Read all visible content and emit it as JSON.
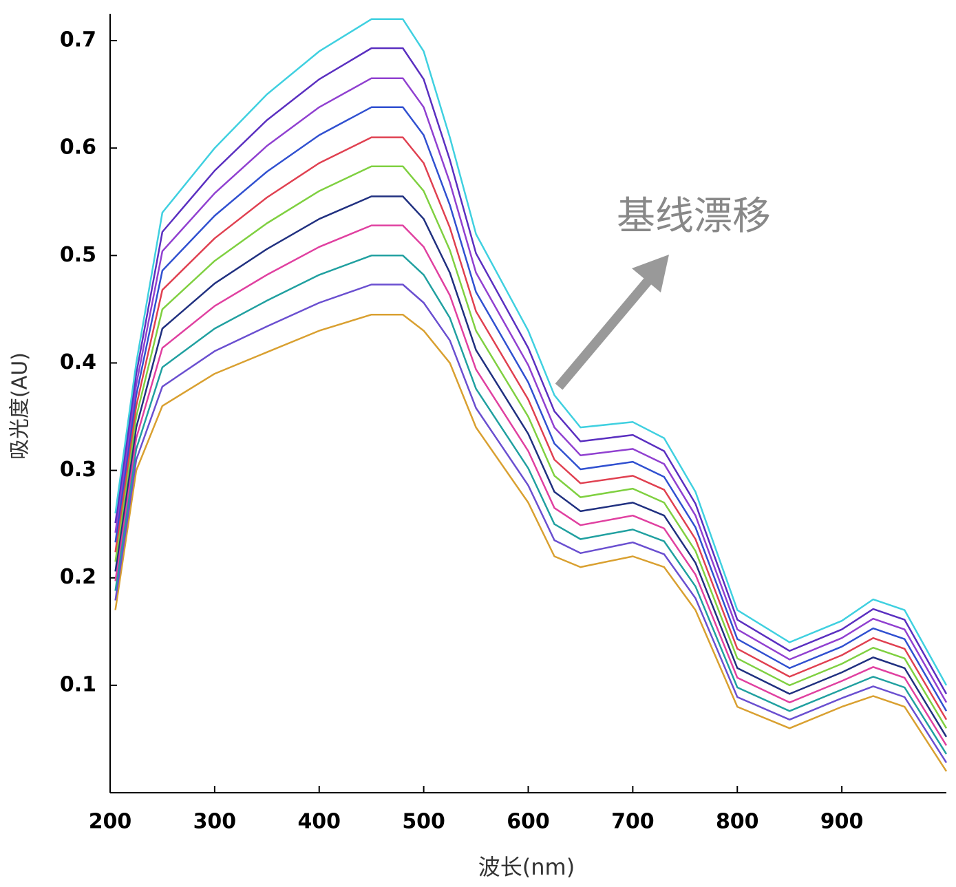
{
  "chart_data": {
    "type": "line",
    "xlabel": "波长(nm)",
    "ylabel": "吸光度(AU)",
    "annotation": "基线漂移",
    "x": [
      205,
      225,
      250,
      300,
      350,
      400,
      450,
      480,
      500,
      525,
      550,
      600,
      625,
      650,
      700,
      730,
      760,
      800,
      850,
      900,
      930,
      960,
      1000
    ],
    "series": [
      {
        "color": "#d9a030",
        "values": [
          0.17,
          0.3,
          0.36,
          0.39,
          0.41,
          0.43,
          0.445,
          0.445,
          0.43,
          0.4,
          0.34,
          0.27,
          0.22,
          0.21,
          0.22,
          0.21,
          0.17,
          0.08,
          0.06,
          0.08,
          0.09,
          0.08,
          0.02
        ]
      },
      {
        "color": "#6a4fd0",
        "values": [
          0.179,
          0.31,
          0.378,
          0.411,
          0.434,
          0.456,
          0.473,
          0.473,
          0.456,
          0.421,
          0.358,
          0.286,
          0.235,
          0.223,
          0.233,
          0.222,
          0.181,
          0.089,
          0.068,
          0.088,
          0.099,
          0.089,
          0.028
        ]
      },
      {
        "color": "#20a0a0",
        "values": [
          0.188,
          0.32,
          0.396,
          0.432,
          0.458,
          0.482,
          0.5,
          0.5,
          0.482,
          0.442,
          0.376,
          0.302,
          0.25,
          0.236,
          0.245,
          0.234,
          0.192,
          0.098,
          0.076,
          0.096,
          0.108,
          0.098,
          0.036
        ]
      },
      {
        "color": "#e040a0",
        "values": [
          0.197,
          0.33,
          0.414,
          0.453,
          0.482,
          0.508,
          0.528,
          0.528,
          0.508,
          0.463,
          0.394,
          0.318,
          0.265,
          0.249,
          0.258,
          0.246,
          0.203,
          0.107,
          0.084,
          0.104,
          0.117,
          0.107,
          0.044
        ]
      },
      {
        "color": "#203080",
        "values": [
          0.206,
          0.34,
          0.432,
          0.474,
          0.506,
          0.534,
          0.555,
          0.555,
          0.534,
          0.484,
          0.412,
          0.334,
          0.28,
          0.262,
          0.27,
          0.258,
          0.214,
          0.116,
          0.092,
          0.112,
          0.126,
          0.116,
          0.052
        ]
      },
      {
        "color": "#7fd040",
        "values": [
          0.215,
          0.35,
          0.45,
          0.495,
          0.53,
          0.56,
          0.583,
          0.583,
          0.56,
          0.505,
          0.43,
          0.35,
          0.295,
          0.275,
          0.283,
          0.27,
          0.225,
          0.125,
          0.1,
          0.12,
          0.135,
          0.125,
          0.06
        ]
      },
      {
        "color": "#e04050",
        "values": [
          0.224,
          0.36,
          0.468,
          0.516,
          0.554,
          0.586,
          0.61,
          0.61,
          0.586,
          0.526,
          0.448,
          0.366,
          0.31,
          0.288,
          0.295,
          0.282,
          0.236,
          0.134,
          0.108,
          0.128,
          0.144,
          0.134,
          0.068
        ]
      },
      {
        "color": "#3050d0",
        "values": [
          0.233,
          0.37,
          0.486,
          0.537,
          0.578,
          0.612,
          0.638,
          0.638,
          0.612,
          0.547,
          0.466,
          0.382,
          0.325,
          0.301,
          0.308,
          0.294,
          0.247,
          0.143,
          0.116,
          0.136,
          0.153,
          0.143,
          0.076
        ]
      },
      {
        "color": "#9040d0",
        "values": [
          0.242,
          0.38,
          0.504,
          0.558,
          0.602,
          0.638,
          0.665,
          0.665,
          0.638,
          0.568,
          0.484,
          0.398,
          0.34,
          0.314,
          0.32,
          0.306,
          0.258,
          0.152,
          0.124,
          0.144,
          0.162,
          0.152,
          0.084
        ]
      },
      {
        "color": "#5a2fc0",
        "values": [
          0.251,
          0.39,
          0.522,
          0.579,
          0.626,
          0.664,
          0.693,
          0.693,
          0.664,
          0.589,
          0.502,
          0.414,
          0.355,
          0.327,
          0.333,
          0.318,
          0.269,
          0.161,
          0.132,
          0.152,
          0.171,
          0.161,
          0.092
        ]
      },
      {
        "color": "#3fd0e0",
        "values": [
          0.26,
          0.4,
          0.54,
          0.6,
          0.65,
          0.69,
          0.72,
          0.72,
          0.69,
          0.61,
          0.52,
          0.43,
          0.37,
          0.34,
          0.345,
          0.33,
          0.28,
          0.17,
          0.14,
          0.16,
          0.18,
          0.17,
          0.1
        ]
      }
    ],
    "xlim": [
      200,
      1000
    ],
    "xticks": [
      200,
      300,
      400,
      500,
      600,
      700,
      800,
      900
    ],
    "ylim": [
      0,
      0.725
    ],
    "yticks": [
      0.1,
      0.2,
      0.3,
      0.4,
      0.5,
      0.6,
      0.7
    ]
  }
}
